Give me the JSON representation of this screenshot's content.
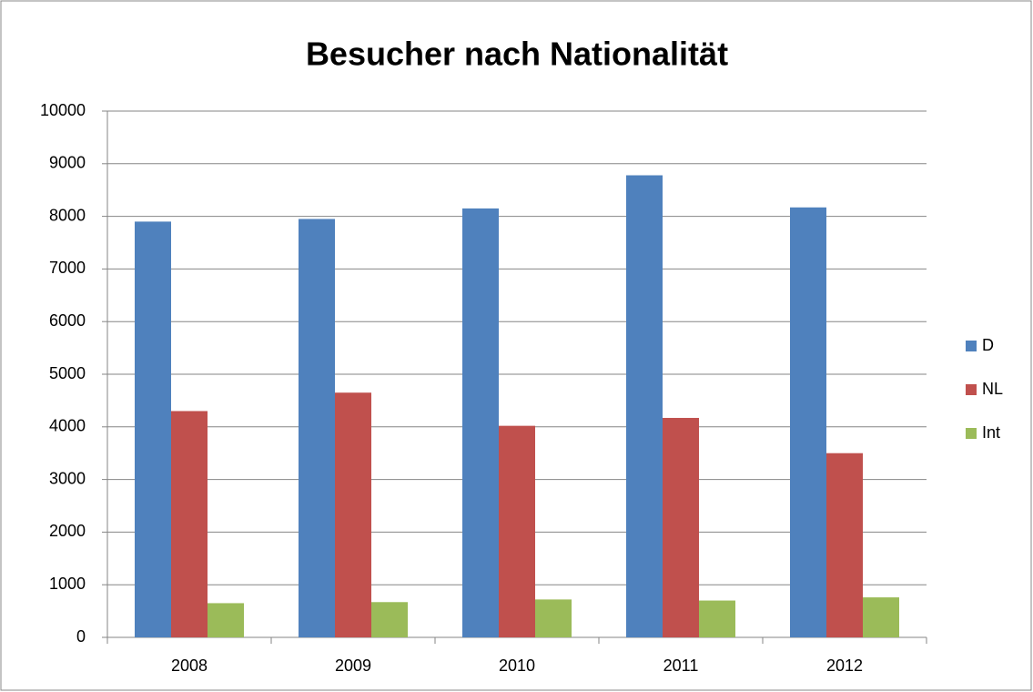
{
  "chart_data": {
    "type": "bar",
    "title": "Besucher nach Nationalität",
    "categories": [
      "2008",
      "2009",
      "2010",
      "2011",
      "2012"
    ],
    "series": [
      {
        "name": "D",
        "color": "#4f81bd",
        "values": [
          7900,
          7950,
          8150,
          8780,
          8170
        ]
      },
      {
        "name": "NL",
        "color": "#c0504d",
        "values": [
          4300,
          4650,
          4020,
          4170,
          3500
        ]
      },
      {
        "name": "Int",
        "color": "#9bbb59",
        "values": [
          650,
          670,
          720,
          700,
          760
        ]
      }
    ],
    "ylim": [
      0,
      10000
    ],
    "yticks": [
      0,
      1000,
      2000,
      3000,
      4000,
      5000,
      6000,
      7000,
      8000,
      9000,
      10000
    ],
    "grid": true,
    "legend": "right"
  }
}
